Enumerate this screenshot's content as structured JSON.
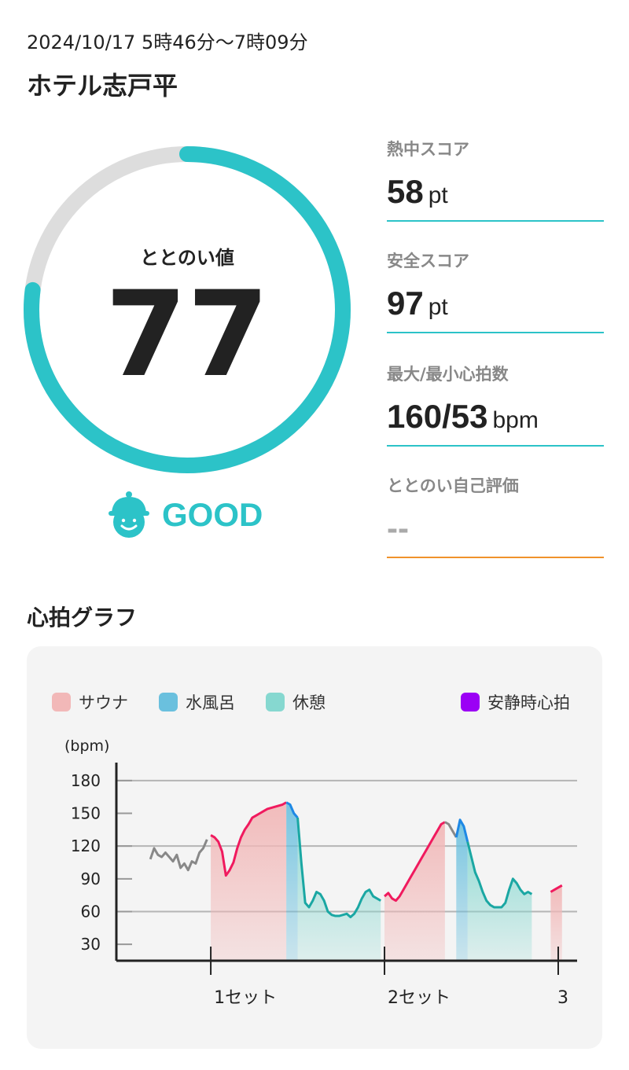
{
  "header": {
    "datetime": "2024/10/17 5時46分〜7時09分",
    "facility": "ホテル志戸平"
  },
  "gauge": {
    "label": "ととのい値",
    "value": "77",
    "fraction": 0.77,
    "status_label": "GOOD",
    "status_icon": "smiling-face-with-cap-icon",
    "colors": {
      "fill": "#2cc3c8",
      "track": "#dddddd"
    }
  },
  "stats": [
    {
      "label": "熱中スコア",
      "value": "58",
      "unit": "pt"
    },
    {
      "label": "安全スコア",
      "value": "97",
      "unit": "pt"
    },
    {
      "label": "最大/最小心拍数",
      "value": "160/53",
      "unit": "bpm"
    },
    {
      "label": "ととのい自己評価",
      "value": "--",
      "unit": ""
    }
  ],
  "chart_section": {
    "title": "心拍グラフ"
  },
  "chart_data": {
    "type": "line",
    "ylabel": "(bpm)",
    "ylim": [
      15,
      195
    ],
    "yticks": [
      30,
      60,
      90,
      120,
      150,
      180
    ],
    "gridlines": [
      60,
      120,
      180
    ],
    "legend": [
      {
        "name": "サウナ",
        "color": "#f2b8b8"
      },
      {
        "name": "水風呂",
        "color": "#6ac0de"
      },
      {
        "name": "休憩",
        "color": "#86d8d0"
      },
      {
        "name": "安静時心拍",
        "color": "#9b00f5"
      }
    ],
    "x_ticks": [
      {
        "label": "1セット",
        "x": 33
      },
      {
        "label": "2セット",
        "x": 79
      },
      {
        "label": "3",
        "x": 125
      }
    ],
    "xlim": [
      8,
      130
    ],
    "segments": [
      {
        "type": "pre",
        "points": [
          [
            17,
            108
          ],
          [
            18,
            118
          ],
          [
            19,
            112
          ],
          [
            20,
            110
          ],
          [
            21,
            114
          ],
          [
            22,
            110
          ],
          [
            23,
            106
          ],
          [
            24,
            112
          ],
          [
            25,
            100
          ],
          [
            26,
            104
          ],
          [
            27,
            98
          ],
          [
            28,
            106
          ],
          [
            29,
            104
          ],
          [
            30,
            114
          ],
          [
            31,
            118
          ],
          [
            32,
            126
          ]
        ]
      },
      {
        "type": "sauna",
        "points": [
          [
            33,
            130
          ],
          [
            34,
            128
          ],
          [
            35,
            124
          ],
          [
            36,
            115
          ],
          [
            37,
            93
          ],
          [
            38,
            98
          ],
          [
            39,
            105
          ],
          [
            40,
            118
          ],
          [
            41,
            128
          ],
          [
            42,
            135
          ],
          [
            43,
            140
          ],
          [
            44,
            146
          ],
          [
            45,
            148
          ],
          [
            46,
            150
          ],
          [
            47,
            152
          ],
          [
            48,
            154
          ],
          [
            49,
            155
          ],
          [
            50,
            156
          ],
          [
            51,
            157
          ],
          [
            52,
            158
          ],
          [
            53,
            160
          ]
        ]
      },
      {
        "type": "cold",
        "points": [
          [
            53,
            160
          ],
          [
            54,
            158
          ],
          [
            55,
            150
          ],
          [
            56,
            146
          ]
        ]
      },
      {
        "type": "rest",
        "points": [
          [
            56,
            146
          ],
          [
            57,
            104
          ],
          [
            58,
            68
          ],
          [
            59,
            64
          ],
          [
            60,
            70
          ],
          [
            61,
            78
          ],
          [
            62,
            76
          ],
          [
            63,
            70
          ],
          [
            64,
            60
          ],
          [
            65,
            57
          ],
          [
            66,
            56
          ],
          [
            67,
            56
          ],
          [
            68,
            57
          ],
          [
            69,
            58
          ],
          [
            70,
            55
          ],
          [
            71,
            58
          ],
          [
            72,
            64
          ],
          [
            73,
            72
          ],
          [
            74,
            78
          ],
          [
            75,
            80
          ],
          [
            76,
            74
          ],
          [
            77,
            72
          ],
          [
            78,
            70
          ]
        ]
      },
      {
        "type": "sauna",
        "points": [
          [
            79,
            74
          ],
          [
            80,
            77
          ],
          [
            81,
            72
          ],
          [
            82,
            70
          ],
          [
            83,
            74
          ],
          [
            84,
            80
          ],
          [
            85,
            86
          ],
          [
            86,
            92
          ],
          [
            87,
            98
          ],
          [
            88,
            104
          ],
          [
            89,
            110
          ],
          [
            90,
            116
          ],
          [
            91,
            122
          ],
          [
            92,
            128
          ],
          [
            93,
            134
          ],
          [
            94,
            140
          ],
          [
            95,
            142
          ]
        ]
      },
      {
        "type": "pre",
        "points": [
          [
            95,
            142
          ],
          [
            96,
            140
          ],
          [
            97,
            134
          ],
          [
            98,
            128
          ]
        ]
      },
      {
        "type": "cold",
        "points": [
          [
            98,
            128
          ],
          [
            99,
            144
          ],
          [
            100,
            138
          ],
          [
            101,
            124
          ]
        ]
      },
      {
        "type": "rest",
        "points": [
          [
            101,
            124
          ],
          [
            102,
            110
          ],
          [
            103,
            96
          ],
          [
            104,
            88
          ],
          [
            105,
            78
          ],
          [
            106,
            70
          ],
          [
            107,
            66
          ],
          [
            108,
            64
          ],
          [
            109,
            64
          ],
          [
            110,
            64
          ],
          [
            111,
            68
          ],
          [
            112,
            80
          ],
          [
            113,
            90
          ],
          [
            114,
            86
          ],
          [
            115,
            80
          ],
          [
            116,
            76
          ],
          [
            117,
            78
          ],
          [
            118,
            76
          ]
        ]
      },
      {
        "type": "sauna",
        "points": [
          [
            123,
            78
          ],
          [
            124,
            80
          ],
          [
            125,
            82
          ],
          [
            126,
            84
          ]
        ]
      }
    ],
    "bands": [
      {
        "type": "sauna",
        "from": 33,
        "to": 53
      },
      {
        "type": "cold",
        "from": 53,
        "to": 56
      },
      {
        "type": "rest",
        "from": 56,
        "to": 78
      },
      {
        "type": "sauna",
        "from": 79,
        "to": 95
      },
      {
        "type": "cold",
        "from": 98,
        "to": 101
      },
      {
        "type": "rest",
        "from": 101,
        "to": 118
      },
      {
        "type": "sauna",
        "from": 123,
        "to": 126
      }
    ],
    "colors": {
      "pre": "#888888",
      "sauna": "#f01a5e",
      "cold": "#1e88e5",
      "rest": "#1aa7a3",
      "sauna_fill": "#f2b8b8",
      "cold_fill": "#6ac0de",
      "rest_fill": "#86d8d0"
    }
  }
}
